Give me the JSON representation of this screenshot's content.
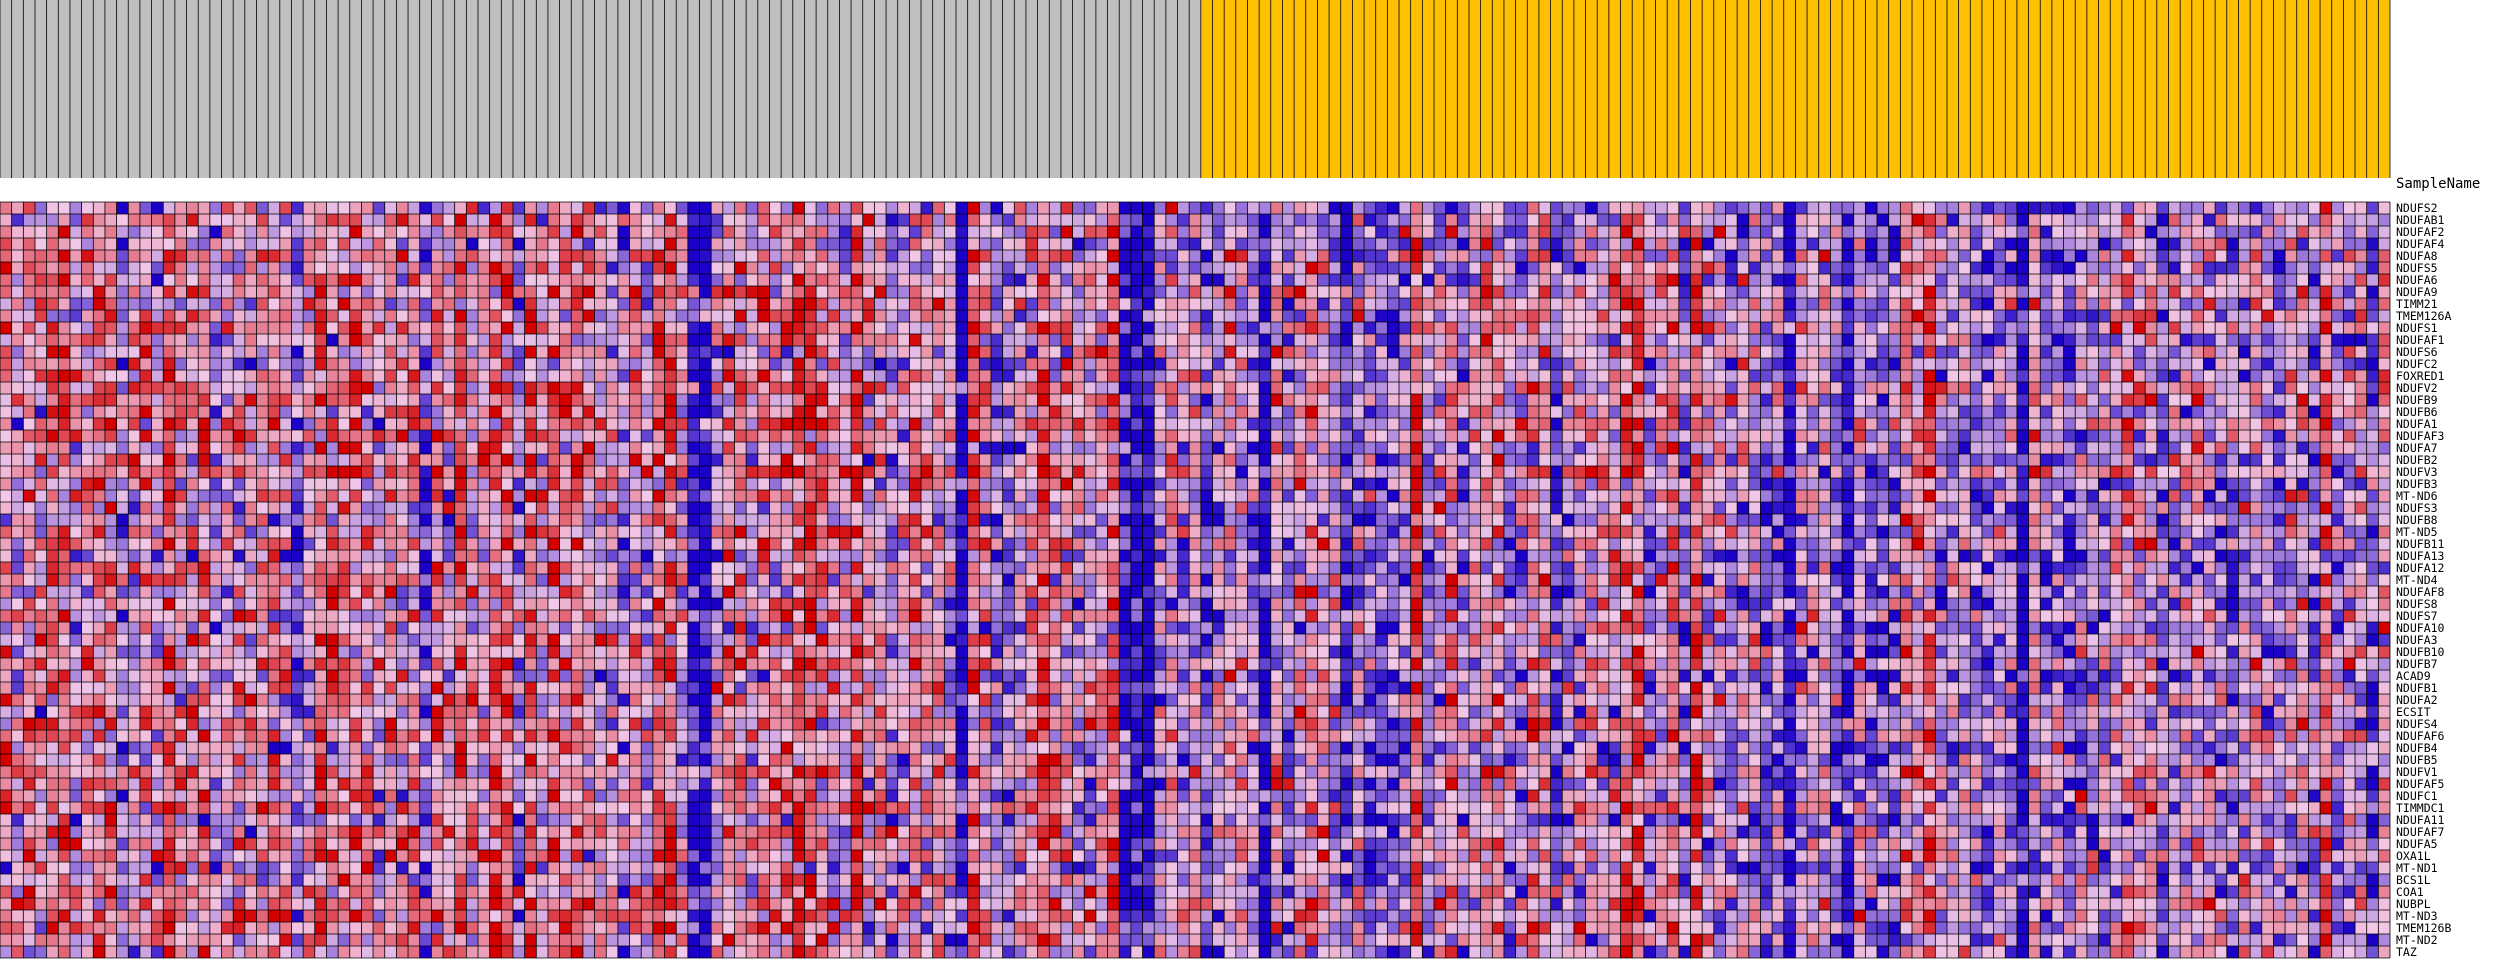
{
  "chart_data": {
    "type": "heatmap",
    "title": "",
    "xlabel": "",
    "ylabel": "",
    "sample_name_label": "SampleName",
    "sample_columns": 205,
    "sample_groups": [
      {
        "color": "#c0c0c0",
        "count": 103
      },
      {
        "color": "#ffc000",
        "count": 102
      }
    ],
    "color_scale": {
      "low": "#1a00c8",
      "mid": "#f2c8e8",
      "high": "#d40000"
    },
    "genes": [
      "NDUFS2",
      "NDUFAB1",
      "NDUFAF2",
      "NDUFAF4",
      "NDUFA8",
      "NDUFS5",
      "NDUFA6",
      "NDUFA9",
      "TIMM21",
      "TMEM126A",
      "NDUFS1",
      "NDUFAF1",
      "NDUFS6",
      "NDUFC2",
      "FOXRED1",
      "NDUFV2",
      "NDUFB9",
      "NDUFB6",
      "NDUFA1",
      "NDUFAF3",
      "NDUFA7",
      "NDUFB2",
      "NDUFV3",
      "NDUFB3",
      "MT-ND6",
      "NDUFS3",
      "NDUFB8",
      "MT-ND5",
      "NDUFB11",
      "NDUFA13",
      "NDUFA12",
      "MT-ND4",
      "NDUFAF8",
      "NDUFS8",
      "NDUFS7",
      "NDUFA10",
      "NDUFA3",
      "NDUFB10",
      "NDUFB7",
      "ACAD9",
      "NDUFB1",
      "NDUFA2",
      "ECSIT",
      "NDUFS4",
      "NDUFAF6",
      "NDUFB4",
      "NDUFB5",
      "NDUFV1",
      "NDUFAF5",
      "NDUFC1",
      "TIMMDC1",
      "NDUFA11",
      "NDUFAF7",
      "NDUFA5",
      "OXA1L",
      "MT-ND1",
      "BCS1L",
      "COA1",
      "NUBPL",
      "MT-ND3",
      "TMEM126B",
      "MT-ND2",
      "TAZ"
    ],
    "seed": 20240611
  }
}
